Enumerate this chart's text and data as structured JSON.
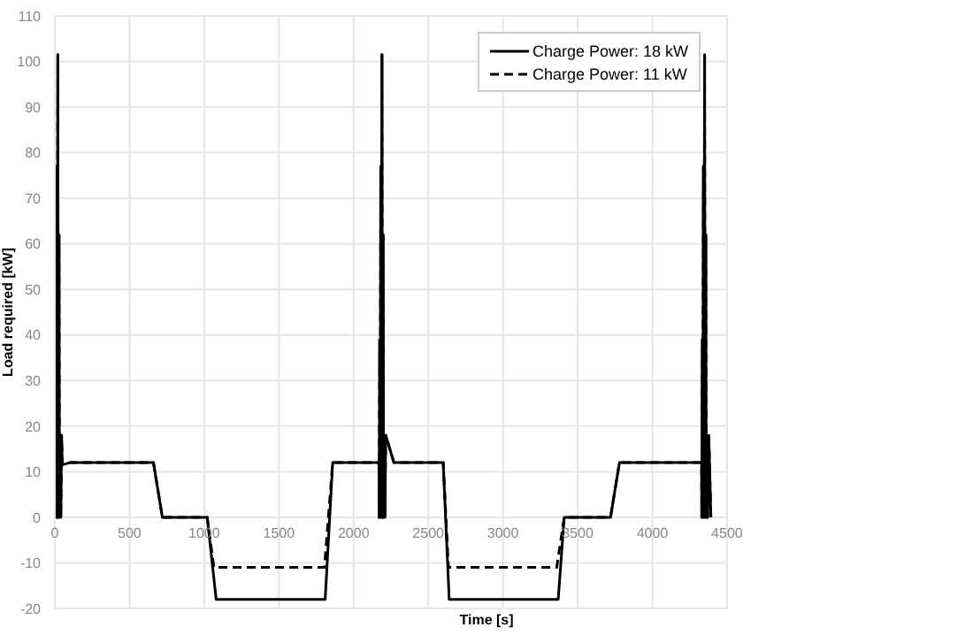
{
  "chart_data": {
    "type": "line",
    "xlabel": "Time [s]",
    "ylabel": "Load required [kW]",
    "xlim": [
      0,
      4500
    ],
    "xticks": [
      0,
      500,
      1000,
      1500,
      2000,
      2500,
      3000,
      3500,
      4000,
      4500
    ],
    "ylim": [
      -20,
      110
    ],
    "yticks": [
      -20,
      -10,
      0,
      10,
      20,
      30,
      40,
      50,
      60,
      70,
      80,
      90,
      100,
      110
    ],
    "grid": true,
    "legend": "top right",
    "marker": "none",
    "series": [
      {
        "name": "Charge Power: 18 kW",
        "color": "#000000",
        "line_style": "solid",
        "x": [
          0,
          5,
          8,
          12,
          15,
          20,
          23,
          28,
          31,
          36,
          40,
          45,
          50,
          100,
          660,
          720,
          1020,
          1080,
          1810,
          1860,
          2170,
          2171,
          2175,
          2178,
          2182,
          2185,
          2190,
          2193,
          2198,
          2201,
          2205,
          2210,
          2215,
          2270,
          2600,
          2640,
          3370,
          3410,
          3720,
          3780,
          4330,
          4331,
          4335,
          4338,
          4342,
          4345,
          4350,
          4353,
          4358,
          4361,
          4365,
          4370,
          4378,
          4392
        ],
        "values": [
          0,
          39,
          0,
          77,
          0,
          101.5,
          0,
          62,
          0,
          18,
          0,
          18,
          11.5,
          12,
          12,
          0,
          0,
          -18,
          -18,
          12,
          12,
          0,
          39,
          0,
          77,
          0,
          101.5,
          0,
          62,
          0,
          18,
          0,
          18,
          12,
          12,
          -18,
          -18,
          0,
          0,
          12,
          12,
          0,
          39,
          0,
          77,
          0,
          101.5,
          0,
          62,
          0,
          18,
          0,
          18,
          0
        ]
      },
      {
        "name": "Charge Power: 11 kW",
        "color": "#000000",
        "line_style": "dashed",
        "x": [
          0,
          5,
          8,
          12,
          15,
          20,
          23,
          28,
          31,
          36,
          40,
          45,
          50,
          100,
          660,
          720,
          1020,
          1065,
          1805,
          1860,
          2170,
          2171,
          2175,
          2178,
          2182,
          2185,
          2190,
          2193,
          2198,
          2201,
          2205,
          2210,
          2215,
          2270,
          2600,
          2635,
          3360,
          3410,
          3720,
          3780,
          4330,
          4331,
          4335,
          4338,
          4342,
          4345,
          4350,
          4353,
          4358,
          4361,
          4365,
          4370,
          4378,
          4392
        ],
        "values": [
          0,
          39,
          0,
          77,
          0,
          101.5,
          0,
          62,
          0,
          18,
          0,
          18,
          11.5,
          12,
          12,
          0,
          0,
          -11,
          -11,
          12,
          12,
          0,
          39,
          0,
          77,
          0,
          101.5,
          0,
          62,
          0,
          18,
          0,
          18,
          12,
          12,
          -11,
          -11,
          0,
          0,
          12,
          12,
          0,
          39,
          0,
          77,
          0,
          101.5,
          0,
          62,
          0,
          18,
          0,
          18,
          0
        ]
      }
    ]
  }
}
